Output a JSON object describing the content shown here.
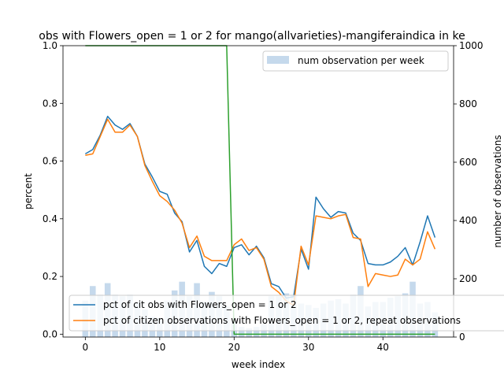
{
  "chart_data": {
    "type": "line",
    "title": "obs with Flowers_open = 1 or 2 for mango(allvarieties)-mangiferaindica in ke",
    "xlabel": "week index",
    "ylabel": "percent",
    "y2label": "number of observations",
    "xlim": [
      -3,
      49.5
    ],
    "ylim": [
      -0.01,
      1.0
    ],
    "y2lim": [
      0,
      1000
    ],
    "xticks": [
      0,
      10,
      20,
      30,
      40
    ],
    "yticks": [
      0.0,
      0.2,
      0.4,
      0.6,
      0.8,
      1.0
    ],
    "yticklabels": [
      "0.0",
      "0.2",
      "0.4",
      "0.6",
      "0.8",
      "1.0"
    ],
    "y2ticks": [
      0,
      200,
      400,
      600,
      800,
      1000
    ],
    "legend_bars_placement": "top-right",
    "legend_lines_placement": "bottom",
    "bars": {
      "name": "num observation per week",
      "color": "#c5d9ec",
      "x": [
        0,
        1,
        2,
        3,
        4,
        5,
        6,
        7,
        8,
        9,
        10,
        11,
        12,
        13,
        14,
        15,
        16,
        17,
        18,
        19,
        20,
        21,
        22,
        23,
        24,
        25,
        26,
        27,
        28,
        29,
        30,
        31,
        32,
        33,
        34,
        35,
        36,
        37,
        38,
        39,
        40,
        41,
        42,
        43,
        44,
        45,
        46,
        47
      ],
      "values": [
        125,
        175,
        145,
        185,
        145,
        140,
        145,
        120,
        95,
        70,
        65,
        125,
        160,
        190,
        140,
        185,
        120,
        155,
        140,
        105,
        55,
        35,
        30,
        35,
        45,
        140,
        140,
        150,
        145,
        115,
        110,
        100,
        115,
        125,
        130,
        115,
        145,
        175,
        105,
        120,
        120,
        135,
        140,
        150,
        190,
        115,
        120,
        85
      ]
    },
    "series": [
      {
        "name": "pct of cit obs with Flowers_open = 1 or 2",
        "color": "#1f77b4",
        "x": [
          0,
          1,
          2,
          3,
          4,
          5,
          6,
          7,
          8,
          9,
          10,
          11,
          12,
          13,
          14,
          15,
          16,
          17,
          18,
          19,
          20,
          21,
          22,
          23,
          24,
          25,
          26,
          27,
          28,
          29,
          30,
          31,
          32,
          33,
          34,
          35,
          36,
          37,
          38,
          39,
          40,
          41,
          42,
          43,
          44,
          45,
          46,
          47
        ],
        "values": [
          0.625,
          0.64,
          0.69,
          0.755,
          0.725,
          0.71,
          0.73,
          0.685,
          0.59,
          0.545,
          0.495,
          0.485,
          0.42,
          0.39,
          0.285,
          0.325,
          0.235,
          0.21,
          0.245,
          0.235,
          0.3,
          0.31,
          0.275,
          0.305,
          0.265,
          0.175,
          0.165,
          0.125,
          0.13,
          0.295,
          0.225,
          0.475,
          0.435,
          0.405,
          0.425,
          0.42,
          0.35,
          0.325,
          0.245,
          0.24,
          0.24,
          0.25,
          0.27,
          0.3,
          0.24,
          0.32,
          0.41,
          0.335
        ]
      },
      {
        "name": "pct of citizen observations with Flowers_open = 1 or 2, repeat observations",
        "color": "#ff7f0e",
        "x": [
          0,
          1,
          2,
          3,
          4,
          5,
          6,
          7,
          8,
          9,
          10,
          11,
          12,
          13,
          14,
          15,
          16,
          17,
          18,
          19,
          20,
          21,
          22,
          23,
          24,
          25,
          26,
          27,
          28,
          29,
          30,
          31,
          32,
          33,
          34,
          35,
          36,
          37,
          38,
          39,
          40,
          41,
          42,
          43,
          44,
          45,
          46,
          47
        ],
        "values": [
          0.62,
          0.625,
          0.685,
          0.745,
          0.7,
          0.7,
          0.725,
          0.685,
          0.585,
          0.53,
          0.48,
          0.46,
          0.43,
          0.385,
          0.3,
          0.34,
          0.27,
          0.255,
          0.255,
          0.255,
          0.31,
          0.33,
          0.29,
          0.3,
          0.26,
          0.165,
          0.145,
          0.115,
          0.1,
          0.305,
          0.24,
          0.41,
          0.405,
          0.4,
          0.41,
          0.415,
          0.335,
          0.33,
          0.165,
          0.21,
          0.205,
          0.2,
          0.205,
          0.26,
          0.24,
          0.26,
          0.355,
          0.295
        ]
      },
      {
        "name": "",
        "color": "#2ca02c",
        "x": [
          0,
          19,
          20,
          20.01,
          47
        ],
        "values": [
          1.0,
          1.0,
          0.0,
          0.0,
          0.0
        ]
      }
    ]
  }
}
